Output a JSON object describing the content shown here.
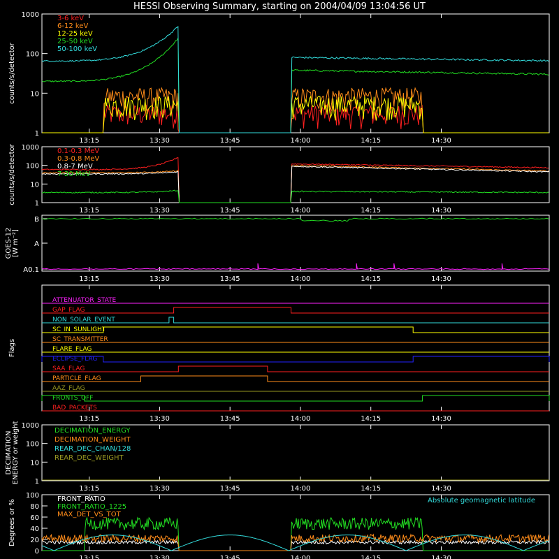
{
  "title": "HESSI Observing Summary, starting on 2004/04/09 13:04:56 UT",
  "x_ticks": [
    "13:15",
    "13:30",
    "13:45",
    "14:00",
    "14:15",
    "14:30"
  ],
  "colors": {
    "red": "#ff2020",
    "orange": "#ff8c1a",
    "yellow": "#ffff00",
    "green": "#22dd22",
    "cyan": "#33dddd",
    "magenta": "#ff22ff",
    "white": "#ffffff",
    "blue": "#2222ff",
    "olive": "#999922"
  },
  "chart_data": [
    {
      "id": "lowE",
      "type": "line",
      "ylabel": "counts/s/detector",
      "yscale": "log",
      "ylim": [
        1,
        1000
      ],
      "yticks": [
        "1",
        "10",
        "100",
        "1000"
      ],
      "legend_position": "top-left",
      "series": [
        {
          "name": "3-6 keV",
          "color": "red",
          "data_gap": [
            "13:34",
            "13:58"
          ],
          "typical_level": 3
        },
        {
          "name": "6-12 keV",
          "color": "orange",
          "data_gap": [
            "13:34",
            "13:58"
          ],
          "typical_level": 8
        },
        {
          "name": "12-25 keV",
          "color": "yellow",
          "data_gap": [
            "13:34",
            "13:58"
          ],
          "typical_level": 5
        },
        {
          "name": "25-50 keV",
          "color": "green",
          "start_value": 20,
          "peak_before_gap": 250,
          "after_gap_value": 38,
          "end_value": 30
        },
        {
          "name": "50-100 keV",
          "color": "cyan",
          "start_value": 65,
          "peak_before_gap": 500,
          "after_gap_value": 80,
          "end_value": 66
        }
      ]
    },
    {
      "id": "highE",
      "type": "line",
      "ylabel": "counts/s/detector",
      "yscale": "log",
      "ylim": [
        1,
        1000
      ],
      "yticks": [
        "1",
        "10",
        "100",
        "1000"
      ],
      "legend_position": "top-left",
      "series": [
        {
          "name": "0.1-0.3 MeV",
          "color": "red",
          "start_value": 60,
          "peak_before_gap": 280,
          "after_gap_value": 120,
          "end_value": 75
        },
        {
          "name": "0.3-0.8 MeV",
          "color": "orange",
          "start_value": 40,
          "after_gap_value": 100,
          "end_value": 50
        },
        {
          "name": "0.8-7 MeV",
          "color": "white",
          "start_value": 35,
          "after_gap_value": 90,
          "end_value": 45
        },
        {
          "name": "7-20 MeV",
          "color": "green",
          "start_value": 3.5,
          "after_gap_value": 4,
          "end_value": 3.5
        }
      ]
    },
    {
      "id": "goes",
      "type": "line",
      "ylabel_line1": "GOES-12",
      "ylabel_line2": "[W m⁻²]",
      "yscale": "log",
      "yticks": [
        "A0.1",
        "A",
        "B"
      ],
      "series": [
        {
          "name": "GOES",
          "color": "green",
          "level": "B"
        },
        {
          "name": "GOES-low",
          "color": "magenta",
          "level": "A0.1",
          "spikes_at": [
            "13:51",
            "14:12",
            "14:20",
            "14:43"
          ]
        }
      ]
    },
    {
      "id": "flags",
      "type": "line",
      "ylabel": "Flags",
      "series": [
        {
          "name": "ATTENUATOR_STATE",
          "color": "magenta",
          "on_intervals": []
        },
        {
          "name": "GAP_FLAG",
          "color": "red",
          "on_intervals": [
            [
              "13:33",
              "13:58"
            ]
          ]
        },
        {
          "name": "NON_SOLAR_EVENT",
          "color": "cyan",
          "on_intervals": [
            [
              "13:32",
              "13:33"
            ]
          ]
        },
        {
          "name": "SC_IN_SUNLIGHT",
          "color": "yellow",
          "on_intervals": [
            [
              "13:18",
              "14:24"
            ]
          ]
        },
        {
          "name": "SC_TRANSMITTER",
          "color": "orange",
          "on_intervals": []
        },
        {
          "name": "FLARE_FLAG",
          "color": "yellow",
          "on_intervals": []
        },
        {
          "name": "ECLIPSE_FLAG",
          "color": "blue",
          "on_intervals": [
            [
              "13:04",
              "13:18"
            ],
            [
              "14:24",
              "14:53"
            ]
          ]
        },
        {
          "name": "SAA_FLAG",
          "color": "red",
          "on_intervals": [
            [
              "13:34",
              "13:53"
            ]
          ]
        },
        {
          "name": "PARTICLE_FLAG",
          "color": "orange",
          "on_intervals": [
            [
              "13:26",
              "13:53"
            ]
          ]
        },
        {
          "name": "AAZ_FLAG",
          "color": "olive",
          "on_intervals": []
        },
        {
          "name": "FRONTS_OFF",
          "color": "green",
          "on_intervals": [
            [
              "13:04",
              "13:14"
            ],
            [
              "14:26",
              "14:53"
            ]
          ]
        },
        {
          "name": "BAD_PACKETS",
          "color": "red",
          "on_intervals": []
        }
      ]
    },
    {
      "id": "decim",
      "type": "line",
      "ylabel_line1": "DECIMATION",
      "ylabel_line2": "ENERGY or weight",
      "yscale": "log",
      "ylim": [
        1,
        1000
      ],
      "yticks": [
        "1",
        "10",
        "100",
        "1000"
      ],
      "series": [
        {
          "name": "DECIMATION_ENERGY",
          "color": "green",
          "level": 1
        },
        {
          "name": "DECIMATION_WEIGHT",
          "color": "orange",
          "level": 1
        },
        {
          "name": "REAR_DEC_CHAN/128",
          "color": "cyan",
          "level": 1
        },
        {
          "name": "REAR_DEC_WEIGHT",
          "color": "olive",
          "level": 1
        }
      ]
    },
    {
      "id": "ratio",
      "type": "line",
      "ylabel": "Degrees or %",
      "ylim": [
        0,
        100
      ],
      "yticks": [
        "0",
        "20",
        "40",
        "60",
        "80",
        "100"
      ],
      "annotation": "Absolute geomagnetic latitude",
      "series": [
        {
          "name": "FRONT_RATIO",
          "color": "white",
          "typical_level": 15
        },
        {
          "name": "FRONT_RATIO_1225",
          "color": "green",
          "typical_level": 48
        },
        {
          "name": "MAX_DET_VS_TOT",
          "color": "orange",
          "typical_level": 22
        },
        {
          "name": "Absolute geomagnetic latitude",
          "color": "cyan",
          "typical_level": 20
        }
      ]
    }
  ]
}
